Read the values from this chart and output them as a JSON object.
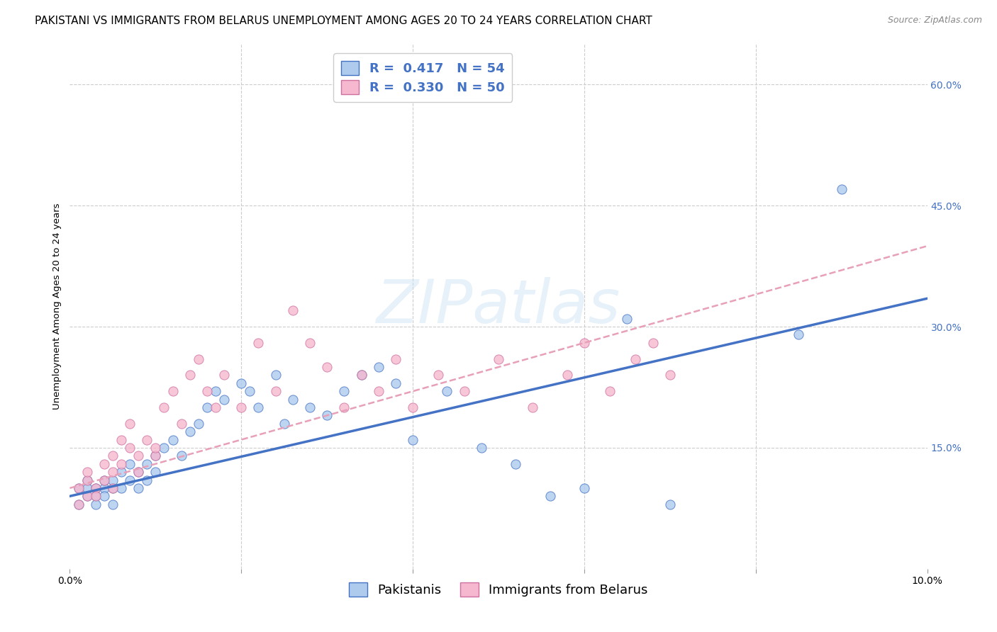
{
  "title": "PAKISTANI VS IMMIGRANTS FROM BELARUS UNEMPLOYMENT AMONG AGES 20 TO 24 YEARS CORRELATION CHART",
  "source": "Source: ZipAtlas.com",
  "ylabel": "Unemployment Among Ages 20 to 24 years",
  "xlim": [
    0.0,
    0.1
  ],
  "ylim": [
    0.0,
    0.65
  ],
  "pakistanis_R": 0.417,
  "pakistanis_N": 54,
  "belarus_R": 0.33,
  "belarus_N": 50,
  "pakistanis_color": "#aecbee",
  "belarus_color": "#f5b8ce",
  "trend_pakistanis_color": "#4472c4",
  "trend_belarus_color": "#e8a0b8",
  "pakistanis_x": [
    0.001,
    0.001,
    0.002,
    0.002,
    0.002,
    0.003,
    0.003,
    0.003,
    0.004,
    0.004,
    0.004,
    0.005,
    0.005,
    0.005,
    0.006,
    0.006,
    0.007,
    0.007,
    0.008,
    0.008,
    0.009,
    0.009,
    0.01,
    0.01,
    0.011,
    0.012,
    0.013,
    0.014,
    0.015,
    0.016,
    0.017,
    0.018,
    0.02,
    0.021,
    0.022,
    0.024,
    0.025,
    0.026,
    0.028,
    0.03,
    0.032,
    0.034,
    0.036,
    0.038,
    0.04,
    0.044,
    0.048,
    0.052,
    0.056,
    0.06,
    0.065,
    0.07,
    0.085,
    0.09
  ],
  "pakistanis_y": [
    0.08,
    0.1,
    0.09,
    0.11,
    0.1,
    0.09,
    0.1,
    0.08,
    0.1,
    0.09,
    0.11,
    0.1,
    0.11,
    0.08,
    0.12,
    0.1,
    0.11,
    0.13,
    0.12,
    0.1,
    0.13,
    0.11,
    0.14,
    0.12,
    0.15,
    0.16,
    0.14,
    0.17,
    0.18,
    0.2,
    0.22,
    0.21,
    0.23,
    0.22,
    0.2,
    0.24,
    0.18,
    0.21,
    0.2,
    0.19,
    0.22,
    0.24,
    0.25,
    0.23,
    0.16,
    0.22,
    0.15,
    0.13,
    0.09,
    0.1,
    0.31,
    0.08,
    0.29,
    0.47
  ],
  "belarus_x": [
    0.001,
    0.001,
    0.002,
    0.002,
    0.002,
    0.003,
    0.003,
    0.004,
    0.004,
    0.005,
    0.005,
    0.005,
    0.006,
    0.006,
    0.007,
    0.007,
    0.008,
    0.008,
    0.009,
    0.01,
    0.01,
    0.011,
    0.012,
    0.013,
    0.014,
    0.015,
    0.016,
    0.017,
    0.018,
    0.02,
    0.022,
    0.024,
    0.026,
    0.028,
    0.03,
    0.032,
    0.034,
    0.036,
    0.038,
    0.04,
    0.043,
    0.046,
    0.05,
    0.054,
    0.058,
    0.06,
    0.063,
    0.066,
    0.068,
    0.07
  ],
  "belarus_y": [
    0.1,
    0.08,
    0.11,
    0.09,
    0.12,
    0.1,
    0.09,
    0.11,
    0.13,
    0.12,
    0.1,
    0.14,
    0.16,
    0.13,
    0.15,
    0.18,
    0.14,
    0.12,
    0.16,
    0.14,
    0.15,
    0.2,
    0.22,
    0.18,
    0.24,
    0.26,
    0.22,
    0.2,
    0.24,
    0.2,
    0.28,
    0.22,
    0.32,
    0.28,
    0.25,
    0.2,
    0.24,
    0.22,
    0.26,
    0.2,
    0.24,
    0.22,
    0.26,
    0.2,
    0.24,
    0.28,
    0.22,
    0.26,
    0.28,
    0.24
  ],
  "trend_pak_x0": 0.0,
  "trend_pak_y0": 0.09,
  "trend_pak_x1": 0.1,
  "trend_pak_y1": 0.335,
  "trend_bel_x0": 0.0,
  "trend_bel_y0": 0.1,
  "trend_bel_x1": 0.1,
  "trend_bel_y1": 0.4,
  "background_color": "#ffffff",
  "grid_color": "#cccccc",
  "title_fontsize": 11,
  "axis_fontsize": 9.5,
  "tick_fontsize": 10,
  "legend_fontsize": 13,
  "watermark_text": "ZIPatlas"
}
